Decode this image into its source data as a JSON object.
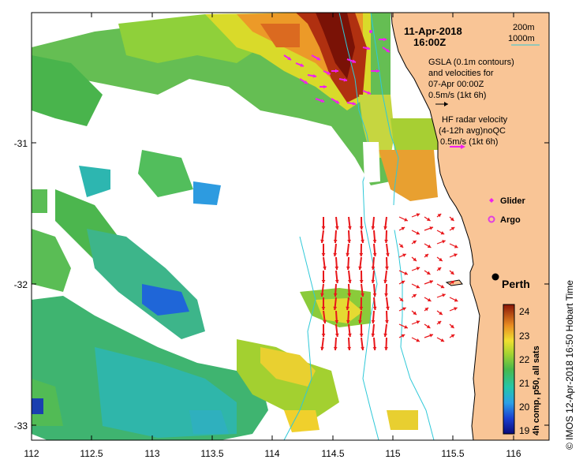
{
  "header": {
    "date": "11-Apr-2018",
    "time": "16:00Z"
  },
  "scale": {
    "line1": "200m",
    "line2": "1000m"
  },
  "gsla_note": {
    "line1": "GSLA (0.1m contours)",
    "line2": "and velocities for",
    "line3": "07-Apr 00:00Z",
    "line4": "0.5m/s (1kt 6h)"
  },
  "hf_note": {
    "line1": "HF radar velocity",
    "line2": "(4-12h avg)noQC",
    "line3": "0.5m/s (1kt 6h)"
  },
  "legend": {
    "glider": "Glider",
    "argo": "Argo"
  },
  "city": {
    "name": "Perth"
  },
  "x_axis": {
    "ticks": [
      "112",
      "112.5",
      "113",
      "113.5",
      "114",
      "114.5",
      "115",
      "115.5",
      "116"
    ]
  },
  "y_axis": {
    "ticks": [
      "-31",
      "-32",
      "-33"
    ]
  },
  "colorbar": {
    "label": "4h comp, p50, all sats",
    "ticks": [
      "24",
      "23",
      "22",
      "21",
      "20",
      "19"
    ]
  },
  "credit": "© IMOS 12-Apr-2018 16:50 Hobart Time",
  "colors": {
    "land": "#F9C596",
    "ocean": "#FFFFFF",
    "isobath": "#2EC8D8",
    "hf_arrow": "#E8161A",
    "gsla_arrow": "#F020F0",
    "glider_marker": "#F020F0",
    "argo_marker": "#E040E0"
  }
}
